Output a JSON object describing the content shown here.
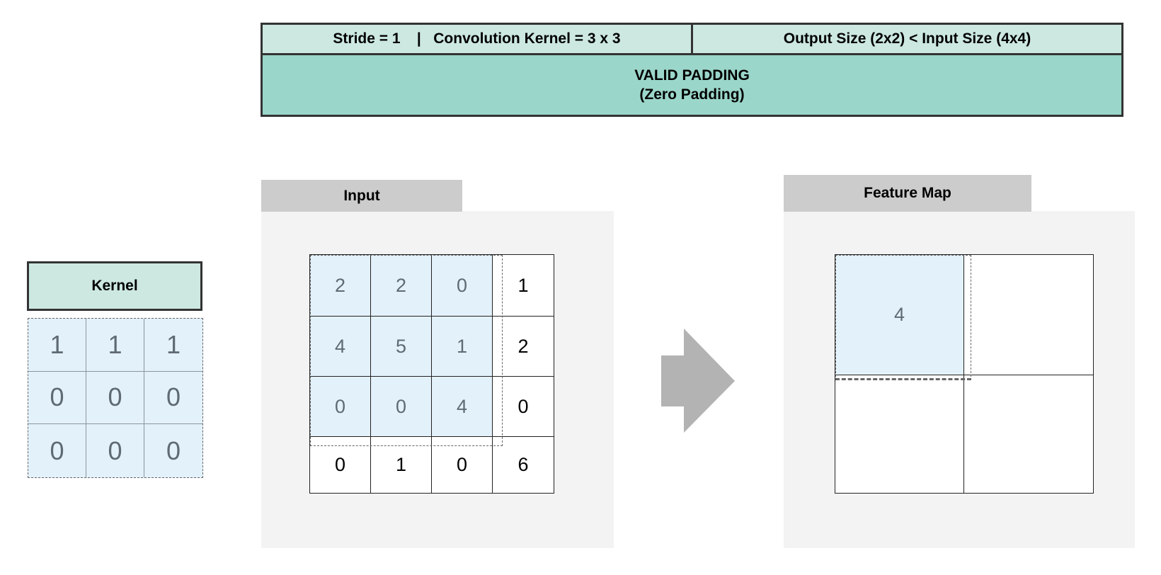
{
  "header": {
    "stride_kernel": "Stride = 1    |   Convolution Kernel = 3 x 3",
    "output_size": "Output Size (2x2) < Input Size (4x4)",
    "padding_title": "VALID PADDING",
    "padding_subtitle": "(Zero Padding)"
  },
  "kernel": {
    "title": "Kernel",
    "values": [
      [
        "1",
        "1",
        "1"
      ],
      [
        "0",
        "0",
        "0"
      ],
      [
        "0",
        "0",
        "0"
      ]
    ]
  },
  "input": {
    "title": "Input",
    "values": [
      [
        "2",
        "2",
        "0",
        "1"
      ],
      [
        "4",
        "5",
        "1",
        "2"
      ],
      [
        "0",
        "0",
        "4",
        "0"
      ],
      [
        "0",
        "1",
        "0",
        "6"
      ]
    ],
    "highlight_rows": 3,
    "highlight_cols": 3
  },
  "feature_map": {
    "title": "Feature Map",
    "values": [
      [
        "4",
        ""
      ],
      [
        "",
        ""
      ]
    ]
  },
  "colors": {
    "header_light": "#cce8e1",
    "header_dark": "#9bd6ca",
    "highlight": "#e3f1fb",
    "tab": "#cccccc",
    "panel": "#f3f3f3",
    "arrow": "#b3b3b3"
  },
  "icons": {
    "arrow": "right-arrow-icon"
  }
}
